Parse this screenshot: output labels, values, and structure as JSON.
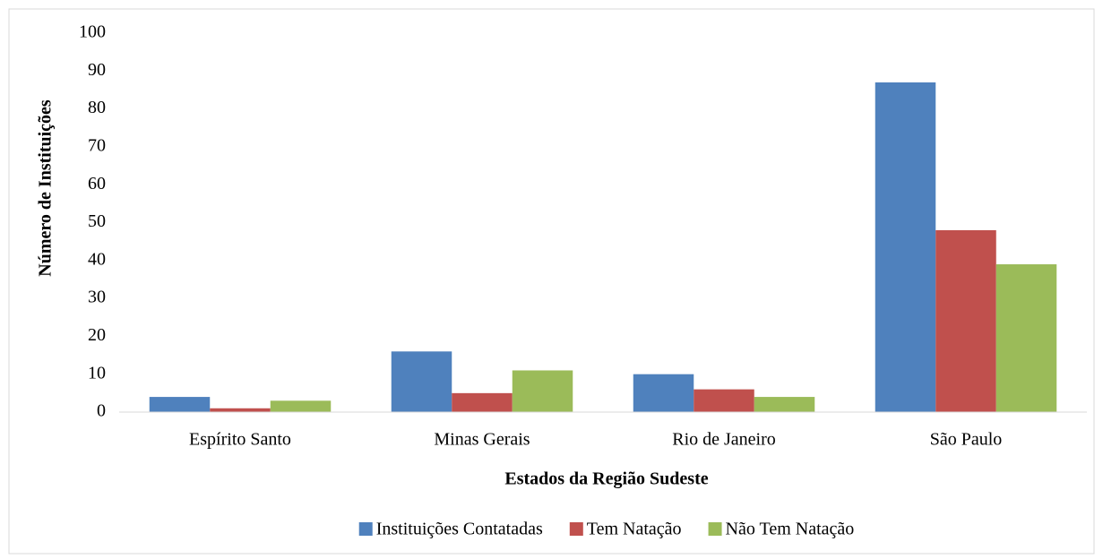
{
  "chart_data": {
    "type": "bar",
    "categories": [
      "Espírito Santo",
      "Minas Gerais",
      "Rio de Janeiro",
      "São Paulo"
    ],
    "series": [
      {
        "name": "Instituições Contatadas",
        "color": "#4f81bd",
        "values": [
          4,
          16,
          10,
          87
        ]
      },
      {
        "name": "Tem Natação",
        "color": "#c0504d",
        "values": [
          1,
          5,
          6,
          48
        ]
      },
      {
        "name": "Não Tem Natação",
        "color": "#9bbb59",
        "values": [
          3,
          11,
          4,
          39
        ]
      }
    ],
    "x_label": "Estados da Região Sudeste",
    "y_label": "Número de Instituições",
    "ylim": [
      0,
      100
    ],
    "yticks": [
      0,
      10,
      20,
      30,
      40,
      50,
      60,
      70,
      80,
      90,
      100
    ],
    "grid": false,
    "legend": "bottom"
  }
}
